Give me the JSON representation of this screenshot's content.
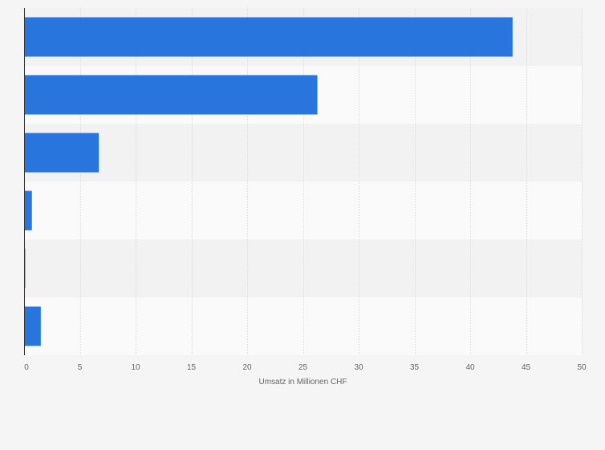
{
  "chart_data": {
    "type": "bar",
    "orientation": "horizontal",
    "categories": [
      "",
      "",
      "",
      "",
      "",
      ""
    ],
    "values": [
      43.8,
      26.3,
      6.7,
      0.7,
      0.1,
      1.5
    ],
    "title": "",
    "xlabel": "Umsatz in Millionen CHF",
    "ylabel": "",
    "xlim": [
      0,
      50
    ],
    "xticks": [
      0,
      5,
      10,
      15,
      20,
      25,
      30,
      35,
      40,
      45,
      50
    ],
    "grid": true,
    "legend": "none",
    "colors": {
      "bar": "#2876dd",
      "band_dark": "#f2f2f2",
      "band_light": "#fafafa",
      "grid": "#dcdcdc",
      "axis": "#333333",
      "text": "#666666"
    }
  }
}
